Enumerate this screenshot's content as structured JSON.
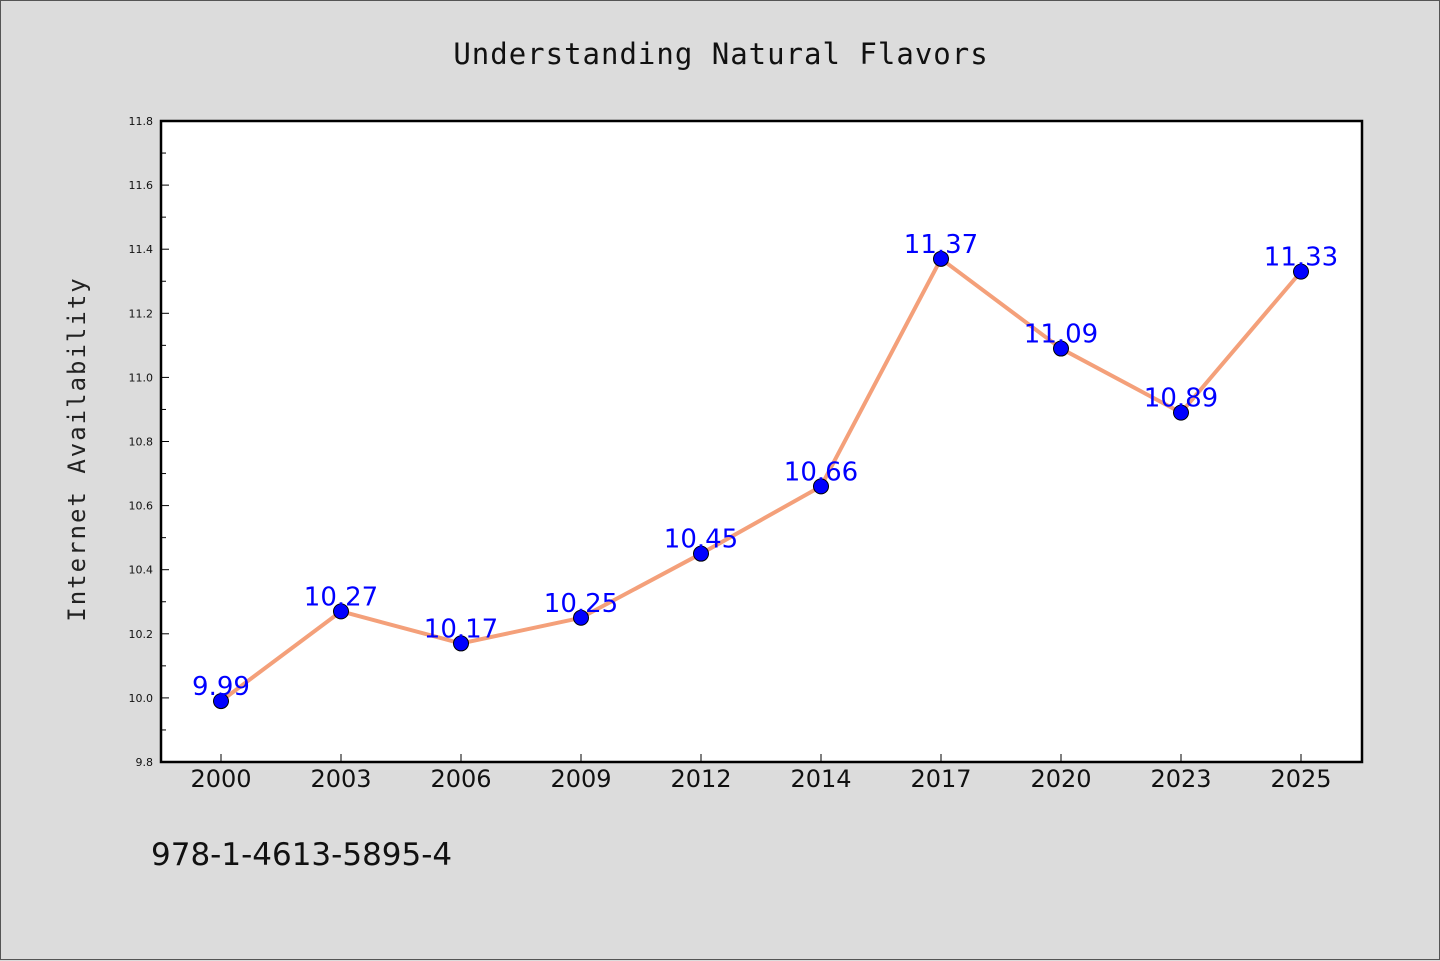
{
  "chart_data": {
    "type": "line",
    "title": "Understanding Natural Flavors",
    "xlabel": "",
    "ylabel": "Internet Availability",
    "categories": [
      "2000",
      "2003",
      "2006",
      "2009",
      "2012",
      "2014",
      "2017",
      "2020",
      "2023",
      "2025"
    ],
    "values": [
      9.99,
      10.27,
      10.17,
      10.25,
      10.45,
      10.66,
      11.37,
      11.09,
      10.89,
      11.33
    ],
    "data_labels": [
      "9.99",
      "10.27",
      "10.17",
      "10.25",
      "10.45",
      "10.66",
      "11.37",
      "11.09",
      "10.89",
      "11.33"
    ],
    "ylim": [
      9.8,
      11.8
    ],
    "yticks": [
      "9.8",
      "10.0",
      "10.2",
      "10.4",
      "10.6",
      "10.8",
      "11.0",
      "11.2",
      "11.4",
      "11.6",
      "11.8"
    ],
    "grid": false,
    "legend": "none",
    "colors": {
      "line": "#f4a07a",
      "marker": "#0000ff",
      "label": "#0000ff",
      "background": "#dcdcdc",
      "plot_area": "#ffffff"
    }
  },
  "footer": {
    "code": "978-1-4613-5895-4"
  }
}
